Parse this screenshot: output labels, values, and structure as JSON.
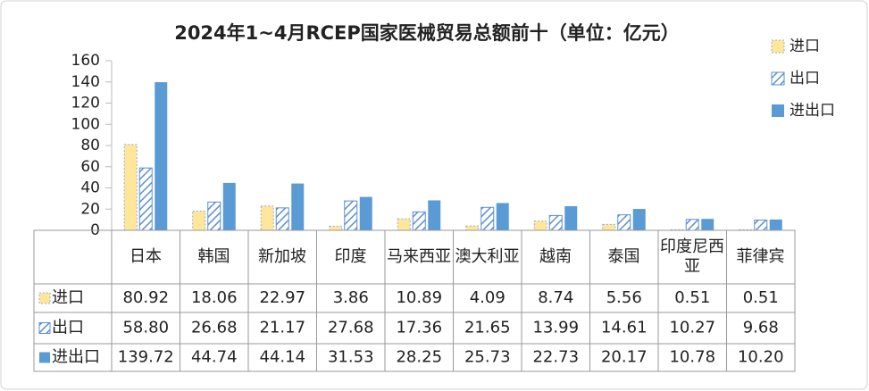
{
  "chart_data": {
    "type": "bar",
    "title": "2024年1~4月RCEP国家医械贸易总额前十（单位：亿元）",
    "categories": [
      "日本",
      "韩国",
      "新加坡",
      "印度",
      "马来西亚",
      "澳大利亚",
      "越南",
      "泰国",
      "印度尼西亚",
      "菲律宾"
    ],
    "series": [
      {
        "name": "进口",
        "color": "#ffe699",
        "values": [
          80.92,
          18.06,
          22.97,
          3.86,
          10.89,
          4.09,
          8.74,
          5.56,
          0.51,
          0.51
        ],
        "value_labels": [
          "80.92",
          "18.06",
          "22.97",
          "3.86",
          "10.89",
          "4.09",
          "8.74",
          "5.56",
          "0.51",
          "0.51"
        ]
      },
      {
        "name": "出口",
        "color": "#5b8fd5",
        "values": [
          58.8,
          26.68,
          21.17,
          27.68,
          17.36,
          21.65,
          13.99,
          14.61,
          10.27,
          9.68
        ],
        "value_labels": [
          "58.80",
          "26.68",
          "21.17",
          "27.68",
          "17.36",
          "21.65",
          "13.99",
          "14.61",
          "10.27",
          "9.68"
        ]
      },
      {
        "name": "进出口",
        "color": "#5b9bd5",
        "values": [
          139.72,
          44.74,
          44.14,
          31.53,
          28.25,
          25.73,
          22.73,
          20.17,
          10.78,
          10.2
        ],
        "value_labels": [
          "139.72",
          "44.74",
          "44.14",
          "31.53",
          "28.25",
          "25.73",
          "22.73",
          "20.17",
          "10.78",
          "10.20"
        ]
      }
    ],
    "ylim": [
      0,
      160
    ],
    "yticks": [
      0,
      20,
      40,
      60,
      80,
      100,
      120,
      140,
      160
    ],
    "grid": false,
    "legend": "top-right"
  }
}
